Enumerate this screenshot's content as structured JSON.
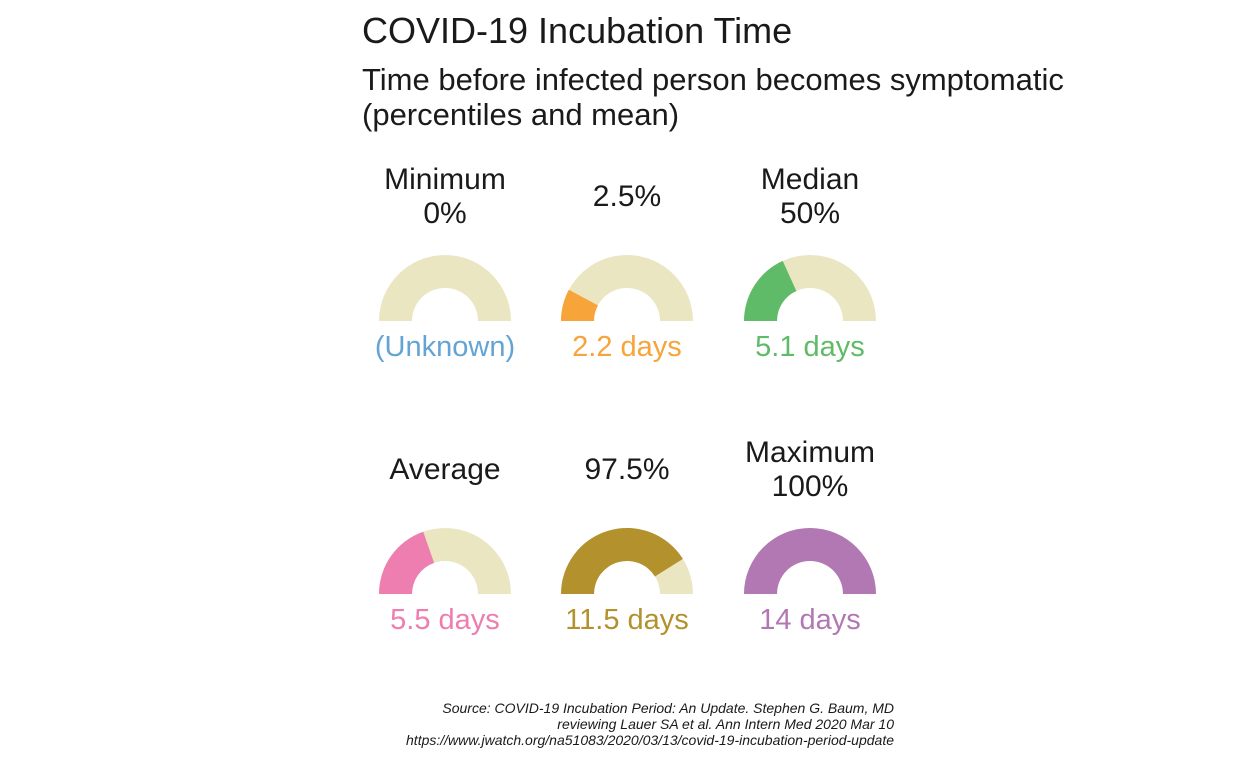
{
  "title": "COVID-19 Incubation Time",
  "subtitle_lines": [
    "Time before infected person becomes symptomatic",
    "(percentiles and mean)"
  ],
  "caption_lines": [
    "Source: COVID-19 Incubation Period: An Update. Stephen G. Baum, MD",
    "reviewing Lauer SA et al. Ann Intern Med 2020 Mar 10",
    "https://www.jwatch.org/na51083/2020/03/13/covid-19-incubation-period-update"
  ],
  "chart_data": {
    "type": "gauge",
    "scale_max_days": 14,
    "track_color": "#ebe6c2",
    "gauges": [
      {
        "label_lines": [
          "Minimum",
          "0%"
        ],
        "value_label": "(Unknown)",
        "value": null,
        "color": "#63a4d4"
      },
      {
        "label_lines": [
          "2.5%"
        ],
        "value_label": "2.2 days",
        "value": 2.2,
        "color": "#f7a43b"
      },
      {
        "label_lines": [
          "Median",
          "50%"
        ],
        "value_label": "5.1 days",
        "value": 5.1,
        "color": "#5fbb68"
      },
      {
        "label_lines": [
          "Average"
        ],
        "value_label": "5.5 days",
        "value": 5.5,
        "color": "#ee7db0"
      },
      {
        "label_lines": [
          "97.5%"
        ],
        "value_label": "11.5 days",
        "value": 11.5,
        "color": "#b3912d"
      },
      {
        "label_lines": [
          "Maximum",
          "100%"
        ],
        "value_label": "14 days",
        "value": 14,
        "color": "#b178b4"
      }
    ]
  }
}
